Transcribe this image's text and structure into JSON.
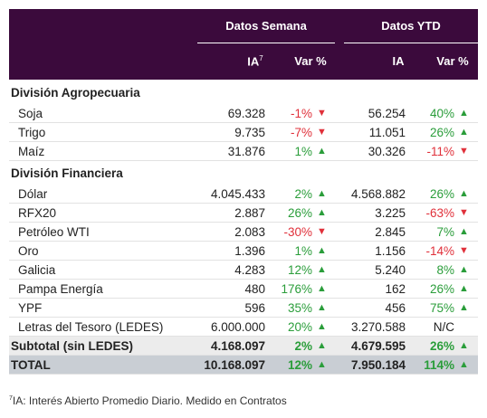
{
  "header": {
    "group_week": "Datos Semana",
    "group_ytd": "Datos YTD",
    "ia": "IA",
    "ia_note": "7",
    "var": "Var %",
    "ia_ytd": "IA",
    "var_ytd": "Var %"
  },
  "sections": [
    {
      "title": "División Agropecuaria",
      "rows": [
        [
          "Soja",
          "69.328",
          "-1%",
          "56.254",
          "40%"
        ],
        [
          "Trigo",
          "9.735",
          "-7%",
          "11.051",
          "26%"
        ],
        [
          "Maíz",
          "31.876",
          "1%",
          "30.326",
          "-11%"
        ]
      ]
    },
    {
      "title": "División Financiera",
      "rows": [
        [
          "Dólar",
          "4.045.433",
          "2%",
          "4.568.882",
          "26%"
        ],
        [
          "RFX20",
          "2.887",
          "26%",
          "3.225",
          "-63%"
        ],
        [
          "Petróleo WTI",
          "2.083",
          "-30%",
          "2.845",
          "7%"
        ],
        [
          "Oro",
          "1.396",
          "1%",
          "1.156",
          "-14%"
        ],
        [
          "Galicia",
          "4.283",
          "12%",
          "5.240",
          "8%"
        ],
        [
          "Pampa Energía",
          "480",
          "176%",
          "162",
          "26%"
        ],
        [
          "YPF",
          "596",
          "35%",
          "456",
          "75%"
        ],
        [
          "Letras del Tesoro (LEDES)",
          "6.000.000",
          "20%",
          "3.270.588",
          "N/C"
        ]
      ]
    }
  ],
  "subtotal": [
    "Subtotal (sin LEDES)",
    "4.168.097",
    "2%",
    "4.679.595",
    "26%"
  ],
  "total": [
    "TOTAL",
    "10.168.097",
    "12%",
    "7.950.184",
    "114%"
  ],
  "footnote": {
    "marker": "7",
    "text": "IA: Interés Abierto Promedio Diario. Medido en Contratos"
  }
}
